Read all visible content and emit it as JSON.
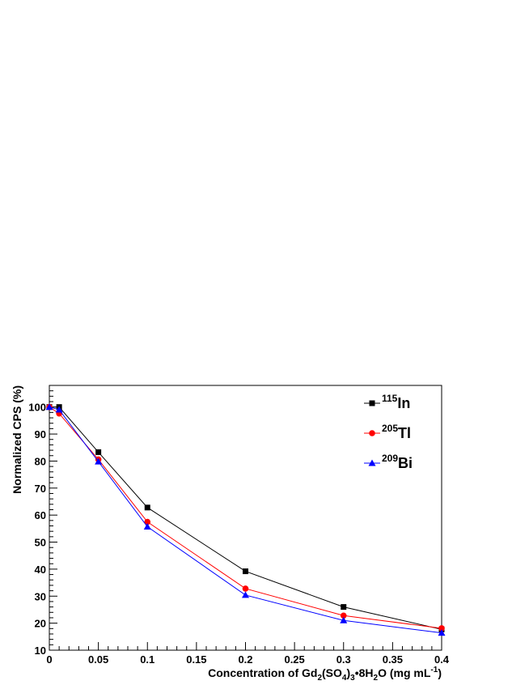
{
  "chart_data": {
    "type": "line",
    "title": "",
    "xlabel": {
      "parts": [
        {
          "text": "Concentration of Gd"
        },
        {
          "text": "2",
          "sub": true
        },
        {
          "text": "(SO"
        },
        {
          "text": "4",
          "sub": true
        },
        {
          "text": ")"
        },
        {
          "text": "3",
          "sub": true
        },
        {
          "text": "•8H"
        },
        {
          "text": "2",
          "sub": true
        },
        {
          "text": "O (mg mL"
        },
        {
          "text": "-1",
          "sup": true
        },
        {
          "text": ")"
        }
      ]
    },
    "ylabel": "Normalized CPS (%)",
    "xlim": [
      0,
      0.4
    ],
    "ylim": [
      10,
      108
    ],
    "xticks": [
      0,
      0.05,
      0.1,
      0.15,
      0.2,
      0.25,
      0.3,
      0.35,
      0.4
    ],
    "xtick_labels": [
      "0",
      "0.05",
      "0.1",
      "0.15",
      "0.2",
      "0.25",
      "0.3",
      "0.35",
      "0.4"
    ],
    "yticks": [
      10,
      20,
      30,
      40,
      50,
      60,
      70,
      80,
      90,
      100
    ],
    "ytick_labels": [
      "10",
      "20",
      "30",
      "40",
      "50",
      "60",
      "70",
      "80",
      "90",
      "100"
    ],
    "grid": false,
    "legend_position": "top-right",
    "series": [
      {
        "name": {
          "sup": "115",
          "text": "In"
        },
        "color": "#000000",
        "marker": "square",
        "x": [
          0,
          0.01,
          0.05,
          0.1,
          0.2,
          0.3,
          0.4
        ],
        "y": [
          100,
          100,
          83.3,
          62.8,
          39.2,
          26.0,
          17.7
        ]
      },
      {
        "name": {
          "sup": "205",
          "text": "Tl"
        },
        "color": "#ff0000",
        "marker": "circle",
        "x": [
          0,
          0.01,
          0.05,
          0.1,
          0.2,
          0.3,
          0.4
        ],
        "y": [
          100,
          97.6,
          80.6,
          57.5,
          32.8,
          22.8,
          18.1
        ]
      },
      {
        "name": {
          "sup": "209",
          "text": "Bi"
        },
        "color": "#0000ff",
        "marker": "triangle",
        "x": [
          0,
          0.01,
          0.05,
          0.1,
          0.2,
          0.3,
          0.4
        ],
        "y": [
          100,
          99.0,
          79.8,
          55.7,
          30.4,
          21.0,
          16.4
        ]
      }
    ]
  }
}
